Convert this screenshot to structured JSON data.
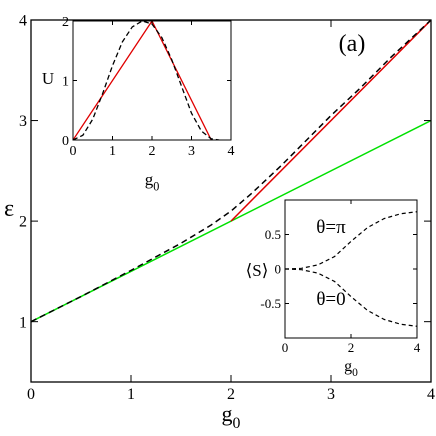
{
  "chart_data": [
    {
      "id": "main",
      "type": "line",
      "panel_label": "(a)",
      "xlabel": "g",
      "xlabel_sub": "0",
      "ylabel": "ε",
      "xlim": [
        0,
        4
      ],
      "ylim": [
        0.4,
        4
      ],
      "x_ticks": [
        0,
        1,
        2,
        3,
        4
      ],
      "y_ticks": [
        1,
        2,
        3,
        4
      ],
      "x_tick_labels": [
        "0",
        "1",
        "2",
        "3",
        "4"
      ],
      "y_tick_labels": [
        "1",
        "2",
        "3",
        "4"
      ],
      "grid": false,
      "series": [
        {
          "color": "#00e000",
          "style": "solid",
          "x": [
            0,
            4
          ],
          "y": [
            1.0,
            3.0
          ]
        },
        {
          "color": "#e00000",
          "style": "solid",
          "x": [
            2,
            4
          ],
          "y": [
            2.0,
            4.0
          ]
        },
        {
          "color": "#000000",
          "style": "dashed",
          "x": [
            0,
            0.5,
            1.0,
            1.5,
            1.8,
            2.0,
            2.2,
            2.5,
            2.8,
            3.0,
            3.3,
            3.6,
            4.0
          ],
          "y": [
            1.0,
            1.25,
            1.51,
            1.78,
            1.96,
            2.1,
            2.27,
            2.55,
            2.85,
            3.05,
            3.33,
            3.63,
            4.0
          ]
        }
      ]
    },
    {
      "id": "inset_u",
      "type": "line",
      "xlabel": "g",
      "xlabel_sub": "0",
      "ylabel": "U",
      "xlim": [
        0,
        4
      ],
      "ylim": [
        0,
        2
      ],
      "x_ticks": [
        0,
        1,
        2,
        3,
        4
      ],
      "y_ticks": [
        0,
        1,
        2
      ],
      "x_tick_labels": [
        "0",
        "1",
        "2",
        "3",
        "4"
      ],
      "y_tick_labels": [
        "0",
        "1",
        "2"
      ],
      "series": [
        {
          "color": "#e00000",
          "style": "solid",
          "x": [
            0,
            2,
            3.5
          ],
          "y": [
            0,
            2,
            0
          ]
        },
        {
          "color": "#000000",
          "style": "dashed",
          "x": [
            0,
            0.25,
            0.5,
            0.75,
            1.0,
            1.25,
            1.5,
            1.75,
            2.0,
            2.25,
            2.5,
            2.75,
            3.0,
            3.25,
            3.5,
            3.7
          ],
          "y": [
            0,
            0.08,
            0.35,
            0.78,
            1.25,
            1.65,
            1.9,
            2.0,
            1.95,
            1.72,
            1.35,
            0.9,
            0.45,
            0.15,
            0.02,
            0
          ]
        }
      ]
    },
    {
      "id": "inset_s",
      "type": "line",
      "xlabel": "g",
      "xlabel_sub": "0",
      "ylabel": "⟨S⟩",
      "xlim": [
        0,
        4
      ],
      "ylim": [
        -1,
        1
      ],
      "x_ticks": [
        0,
        2,
        4
      ],
      "y_ticks": [
        0.5,
        0,
        -0.5
      ],
      "x_tick_labels": [
        "0",
        "2",
        "4"
      ],
      "y_tick_labels": [
        "0.5",
        "0",
        "-0.5"
      ],
      "annotations": [
        "θ=π",
        "θ=0"
      ],
      "series": [
        {
          "color": "#000000",
          "style": "dashed",
          "x": [
            0,
            0.5,
            1.0,
            1.5,
            2.0,
            2.5,
            3.0,
            3.5,
            4.0
          ],
          "y": [
            0,
            0.01,
            0.06,
            0.18,
            0.4,
            0.6,
            0.73,
            0.8,
            0.83
          ]
        },
        {
          "color": "#000000",
          "style": "dashed",
          "x": [
            0,
            0.5,
            1.0,
            1.5,
            2.0,
            2.5,
            3.0,
            3.5,
            4.0
          ],
          "y": [
            0,
            -0.01,
            -0.06,
            -0.18,
            -0.4,
            -0.6,
            -0.73,
            -0.8,
            -0.83
          ]
        }
      ]
    }
  ]
}
